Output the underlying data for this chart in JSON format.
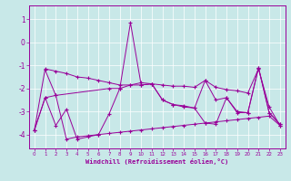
{
  "xlabel": "Windchill (Refroidissement éolien,°C)",
  "bg_color": "#c8e8e8",
  "line_color": "#990099",
  "grid_color": "#ffffff",
  "xlim": [
    -0.5,
    23.5
  ],
  "ylim": [
    -4.6,
    1.6
  ],
  "yticks": [
    1,
    0,
    -1,
    -2,
    -3,
    -4
  ],
  "xticks": [
    0,
    1,
    2,
    3,
    4,
    5,
    6,
    7,
    8,
    9,
    10,
    11,
    12,
    13,
    14,
    15,
    16,
    17,
    18,
    19,
    20,
    21,
    22,
    23
  ],
  "line1_x": [
    0,
    1,
    2,
    3,
    4,
    5,
    6,
    7,
    8,
    9,
    10,
    11,
    12,
    13,
    14,
    15,
    16,
    17,
    18,
    19,
    20,
    21,
    22,
    23
  ],
  "line1_y": [
    -3.8,
    -1.15,
    -1.25,
    -1.35,
    -1.5,
    -1.55,
    -1.65,
    -1.75,
    -1.85,
    -1.85,
    -1.75,
    -1.8,
    -1.85,
    -1.9,
    -1.9,
    -1.95,
    -1.65,
    -1.95,
    -2.05,
    -2.1,
    -2.2,
    -1.15,
    -2.8,
    -3.6
  ],
  "line2_x": [
    0,
    1,
    2,
    3,
    4,
    5,
    6,
    7,
    8,
    9,
    10,
    11,
    12,
    13,
    14,
    15,
    16,
    17,
    18,
    19,
    20,
    21,
    22,
    23
  ],
  "line2_y": [
    -3.8,
    -2.4,
    -3.6,
    -2.9,
    -4.2,
    -4.1,
    -4.0,
    -3.1,
    -2.0,
    0.85,
    -1.85,
    -1.8,
    -2.5,
    -2.7,
    -2.75,
    -2.85,
    -3.5,
    -3.55,
    -2.4,
    -3.0,
    -3.05,
    -1.1,
    -3.05,
    -3.55
  ],
  "line3_x": [
    1,
    2,
    3,
    4,
    5,
    6,
    7,
    8,
    9,
    10,
    11,
    12,
    13,
    14,
    15,
    16,
    17,
    18,
    19,
    20,
    21,
    22,
    23
  ],
  "line3_y": [
    -1.2,
    -2.3,
    -4.2,
    -4.1,
    -4.05,
    -4.0,
    -3.95,
    -3.9,
    -3.85,
    -3.8,
    -3.75,
    -3.7,
    -3.65,
    -3.6,
    -3.55,
    -3.5,
    -3.45,
    -3.4,
    -3.35,
    -3.3,
    -3.25,
    -3.2,
    -3.6
  ],
  "line4_x": [
    0,
    1,
    2,
    7,
    8,
    9,
    10,
    11,
    12,
    13,
    14,
    15,
    16,
    17,
    18,
    19,
    20,
    21,
    22,
    23
  ],
  "line4_y": [
    -3.8,
    -2.4,
    -2.3,
    -2.0,
    -2.0,
    -1.85,
    -1.85,
    -1.8,
    -2.5,
    -2.7,
    -2.8,
    -2.85,
    -1.65,
    -2.5,
    -2.4,
    -3.05,
    -3.05,
    -1.1,
    -3.05,
    -3.55
  ]
}
